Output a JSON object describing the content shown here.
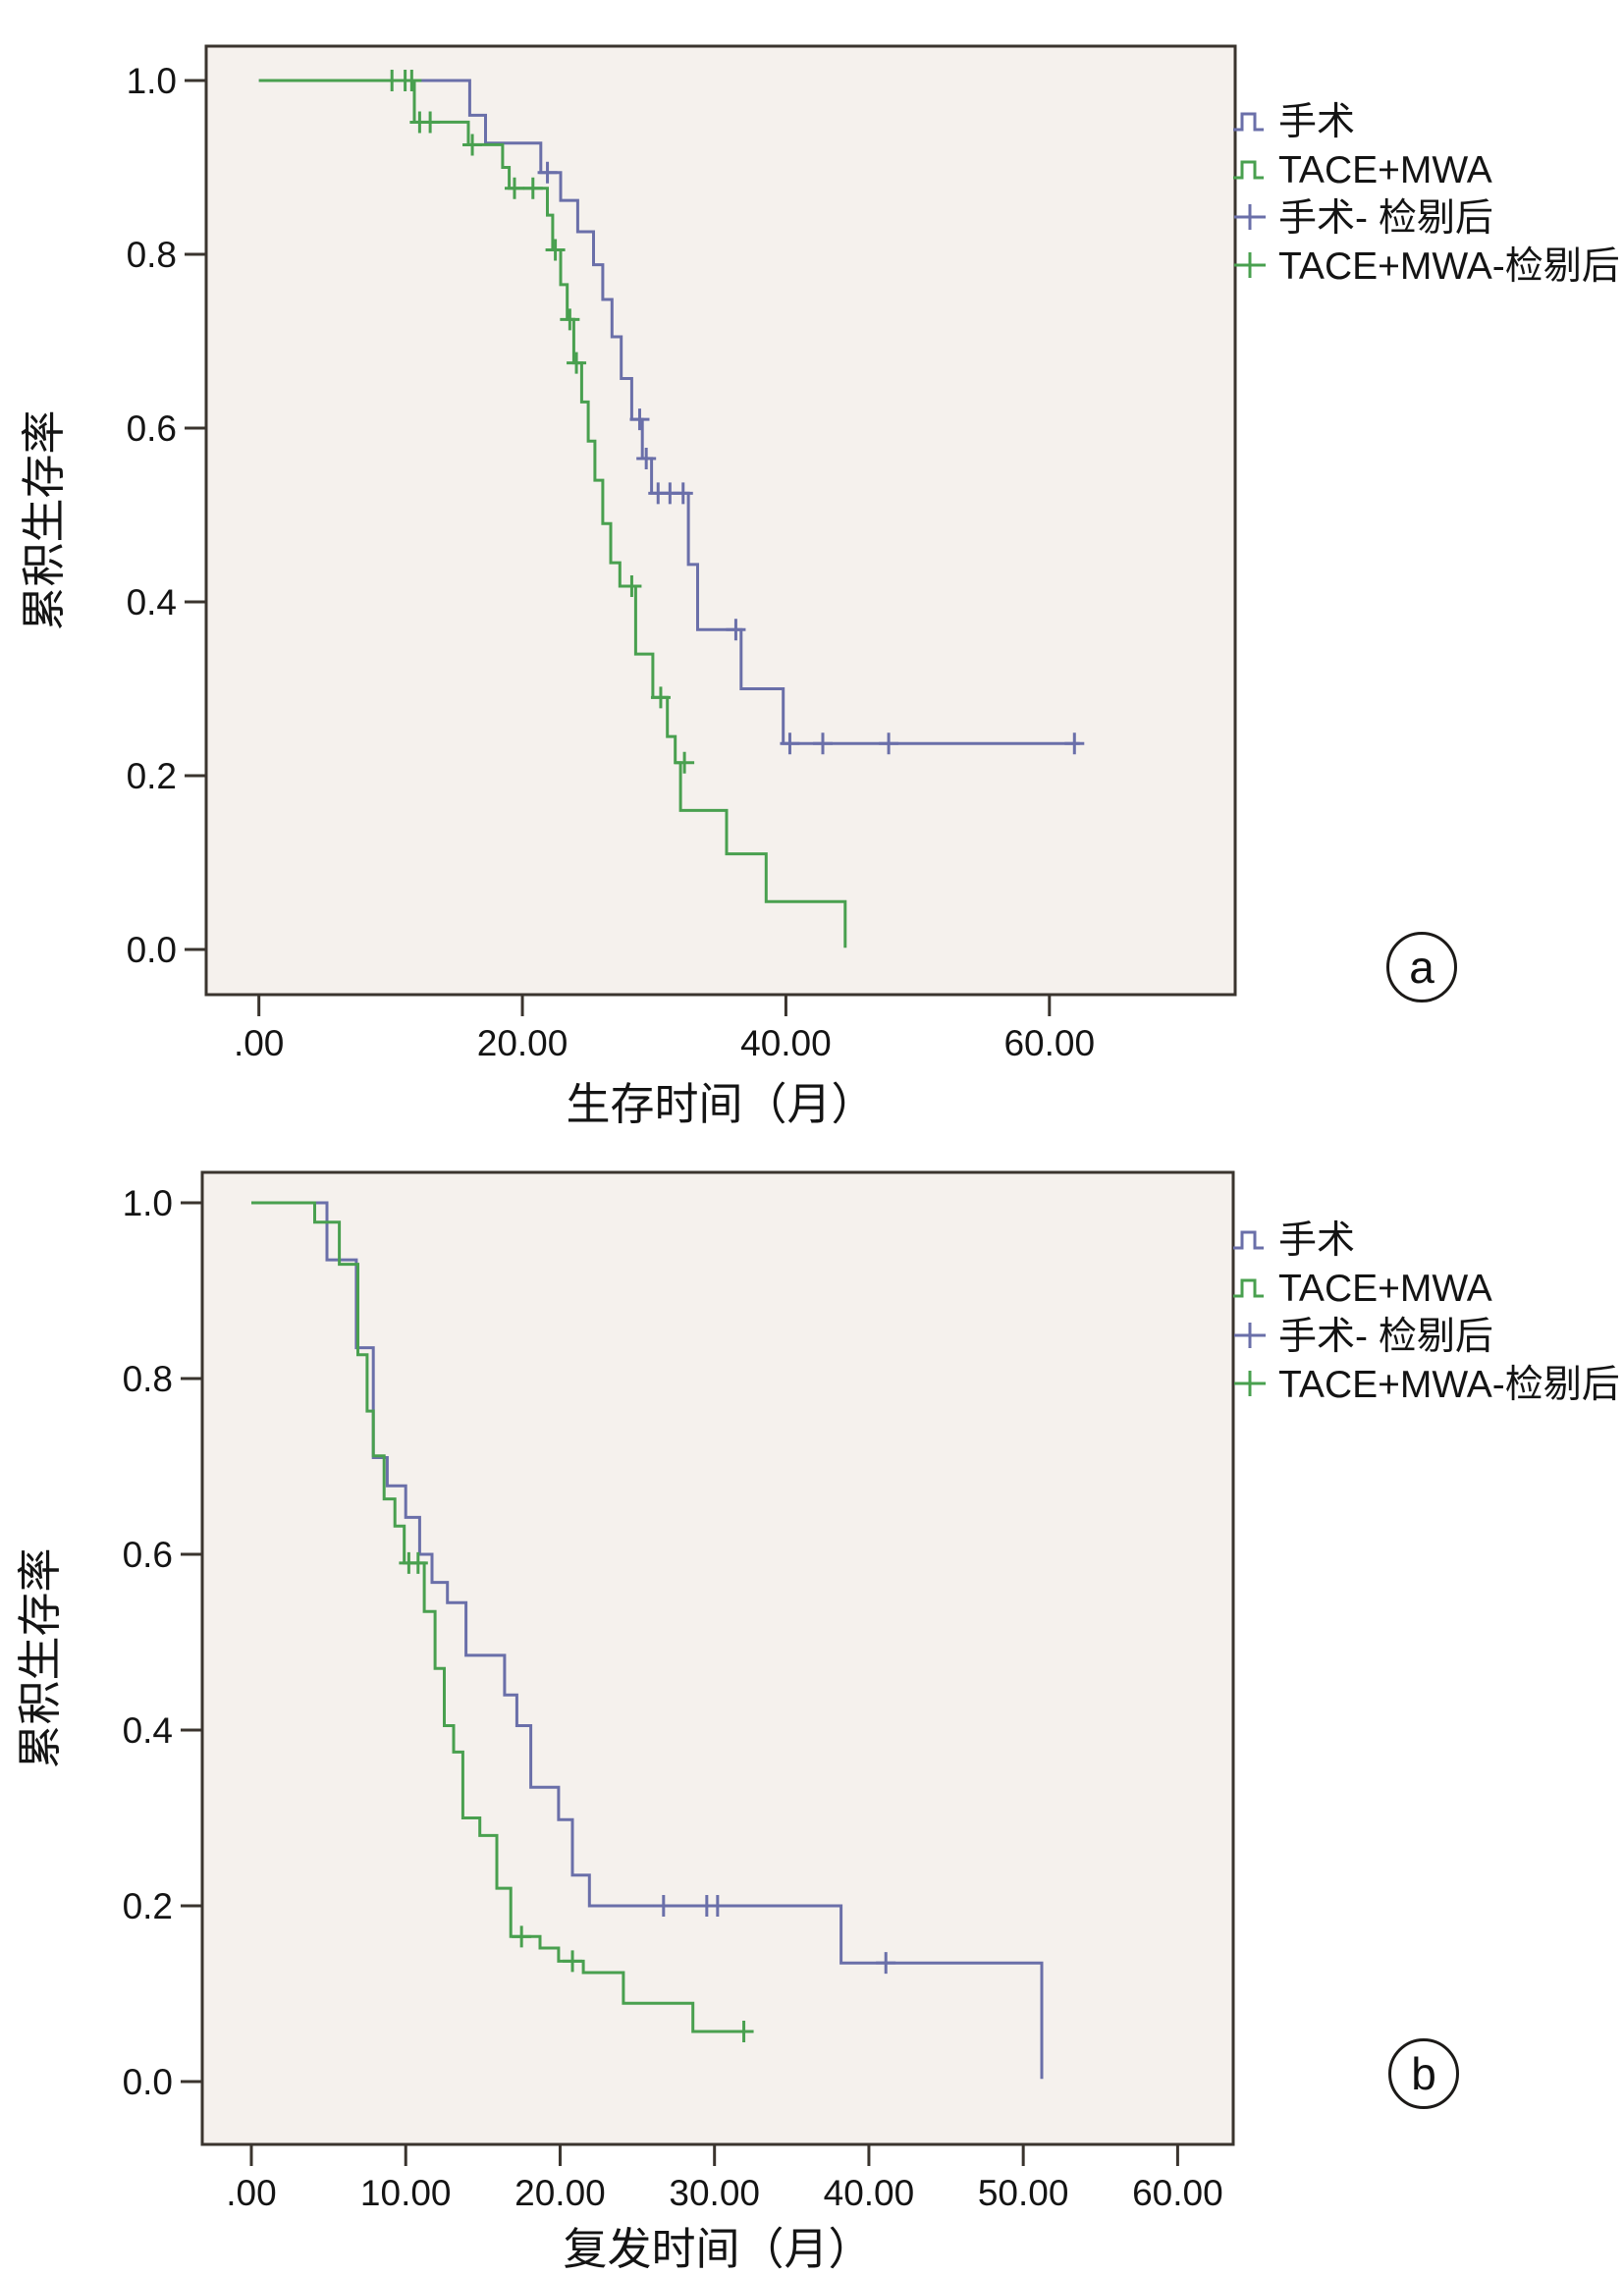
{
  "figure": {
    "background": "#ffffff",
    "panel_markers": [
      "a",
      "b"
    ]
  },
  "colors": {
    "surgery": "#6a6fa9",
    "tace_mwa": "#49a04f",
    "plot_bg": "#f5f1ed",
    "frame": "#3a342e",
    "text": "#141414"
  },
  "legend_items": [
    {
      "label": "手术",
      "series": "surgery",
      "glyph": "step"
    },
    {
      "label": "TACE+MWA",
      "series": "tace_mwa",
      "glyph": "step"
    },
    {
      "label": "手术- 检剔后",
      "series": "surgery",
      "glyph": "plus"
    },
    {
      "label": "TACE+MWA-检剔后",
      "series": "tace_mwa",
      "glyph": "plus"
    }
  ],
  "chart_data": [
    {
      "panel": "a",
      "type": "line",
      "subtype": "kaplan-meier-step",
      "title": "",
      "xlabel": "生存时间（月）",
      "ylabel": "累积生存率",
      "grid": false,
      "legend_position": "right-top",
      "xlim": [
        -4.0,
        74.1
      ],
      "ylim": [
        -0.052,
        1.0395
      ],
      "xticks": [
        {
          "t": 0,
          "label": ".00"
        },
        {
          "t": 20,
          "label": "20.00"
        },
        {
          "t": 40,
          "label": "40.00"
        },
        {
          "t": 60,
          "label": "60.00"
        }
      ],
      "yticks": [
        {
          "v": 0.0,
          "label": "0.0"
        },
        {
          "v": 0.2,
          "label": "0.2"
        },
        {
          "v": 0.4,
          "label": "0.4"
        },
        {
          "v": 0.6,
          "label": "0.6"
        },
        {
          "v": 0.8,
          "label": "0.8"
        },
        {
          "v": 1.0,
          "label": "1.0"
        }
      ],
      "series": [
        {
          "name": "手术",
          "color_key": "surgery",
          "points": [
            [
              0,
              1.0
            ],
            [
              16,
              1.0
            ],
            [
              16,
              0.96
            ],
            [
              17.2,
              0.96
            ],
            [
              17.2,
              0.928
            ],
            [
              21.4,
              0.928
            ],
            [
              21.4,
              0.894
            ],
            [
              22.9,
              0.894
            ],
            [
              22.9,
              0.862
            ],
            [
              24.2,
              0.862
            ],
            [
              24.2,
              0.826
            ],
            [
              25.4,
              0.826
            ],
            [
              25.4,
              0.788
            ],
            [
              26.1,
              0.788
            ],
            [
              26.1,
              0.748
            ],
            [
              26.8,
              0.748
            ],
            [
              26.8,
              0.705
            ],
            [
              27.5,
              0.705
            ],
            [
              27.5,
              0.657
            ],
            [
              28.3,
              0.657
            ],
            [
              28.3,
              0.61
            ],
            [
              29.1,
              0.61
            ],
            [
              29.1,
              0.565
            ],
            [
              29.8,
              0.565
            ],
            [
              29.8,
              0.525
            ],
            [
              32.6,
              0.525
            ],
            [
              32.6,
              0.443
            ],
            [
              33.3,
              0.443
            ],
            [
              33.3,
              0.368
            ],
            [
              36.6,
              0.368
            ],
            [
              36.6,
              0.3
            ],
            [
              39.8,
              0.3
            ],
            [
              39.8,
              0.237
            ],
            [
              62.3,
              0.237
            ]
          ],
          "censors": [
            [
              21.9,
              0.894
            ],
            [
              28.9,
              0.61
            ],
            [
              29.4,
              0.565
            ],
            [
              30.3,
              0.525
            ],
            [
              31.2,
              0.525
            ],
            [
              32.2,
              0.525
            ],
            [
              36.2,
              0.368
            ],
            [
              40.3,
              0.237
            ],
            [
              42.8,
              0.237
            ],
            [
              47.8,
              0.237
            ],
            [
              61.9,
              0.237
            ]
          ]
        },
        {
          "name": "TACE+MWA",
          "color_key": "tace_mwa",
          "points": [
            [
              0,
              1.0
            ],
            [
              11.8,
              1.0
            ],
            [
              11.8,
              0.952
            ],
            [
              15.9,
              0.952
            ],
            [
              15.9,
              0.926
            ],
            [
              18.5,
              0.926
            ],
            [
              18.5,
              0.9
            ],
            [
              19.0,
              0.9
            ],
            [
              19.0,
              0.876
            ],
            [
              21.9,
              0.876
            ],
            [
              21.9,
              0.845
            ],
            [
              22.3,
              0.845
            ],
            [
              22.3,
              0.805
            ],
            [
              22.9,
              0.805
            ],
            [
              22.9,
              0.765
            ],
            [
              23.4,
              0.765
            ],
            [
              23.4,
              0.725
            ],
            [
              23.9,
              0.725
            ],
            [
              23.9,
              0.675
            ],
            [
              24.5,
              0.675
            ],
            [
              24.5,
              0.63
            ],
            [
              25.0,
              0.63
            ],
            [
              25.0,
              0.585
            ],
            [
              25.5,
              0.585
            ],
            [
              25.5,
              0.54
            ],
            [
              26.1,
              0.54
            ],
            [
              26.1,
              0.49
            ],
            [
              26.7,
              0.49
            ],
            [
              26.7,
              0.445
            ],
            [
              27.4,
              0.445
            ],
            [
              27.4,
              0.418
            ],
            [
              28.6,
              0.418
            ],
            [
              28.6,
              0.34
            ],
            [
              29.9,
              0.34
            ],
            [
              29.9,
              0.29
            ],
            [
              31.0,
              0.29
            ],
            [
              31.0,
              0.245
            ],
            [
              31.6,
              0.245
            ],
            [
              31.6,
              0.215
            ],
            [
              32.0,
              0.215
            ],
            [
              32.0,
              0.16
            ],
            [
              35.5,
              0.16
            ],
            [
              35.5,
              0.11
            ],
            [
              38.5,
              0.11
            ],
            [
              38.5,
              0.055
            ],
            [
              44.5,
              0.055
            ],
            [
              44.5,
              0.002
            ]
          ],
          "censors": [
            [
              10.1,
              1.0
            ],
            [
              11.1,
              1.0
            ],
            [
              11.6,
              1.0
            ],
            [
              12.2,
              0.952
            ],
            [
              13.0,
              0.952
            ],
            [
              16.2,
              0.926
            ],
            [
              19.4,
              0.876
            ],
            [
              20.8,
              0.876
            ],
            [
              22.5,
              0.805
            ],
            [
              23.6,
              0.725
            ],
            [
              24.1,
              0.675
            ],
            [
              28.3,
              0.418
            ],
            [
              30.5,
              0.29
            ],
            [
              32.3,
              0.215
            ]
          ]
        }
      ]
    },
    {
      "panel": "b",
      "type": "line",
      "subtype": "kaplan-meier-step",
      "title": "",
      "xlabel": "复发时间（月）",
      "ylabel": "累积生存率",
      "grid": false,
      "legend_position": "right-top",
      "xlim": [
        -3.18,
        63.6
      ],
      "ylim": [
        -0.0715,
        1.0346
      ],
      "xticks": [
        {
          "t": 0,
          "label": ".00"
        },
        {
          "t": 10,
          "label": "10.00"
        },
        {
          "t": 20,
          "label": "20.00"
        },
        {
          "t": 30,
          "label": "30.00"
        },
        {
          "t": 40,
          "label": "40.00"
        },
        {
          "t": 50,
          "label": "50.00"
        },
        {
          "t": 60,
          "label": "60.00"
        }
      ],
      "yticks": [
        {
          "v": 0.0,
          "label": "0.0"
        },
        {
          "v": 0.2,
          "label": "0.2"
        },
        {
          "v": 0.4,
          "label": "0.4"
        },
        {
          "v": 0.6,
          "label": "0.6"
        },
        {
          "v": 0.8,
          "label": "0.8"
        },
        {
          "v": 1.0,
          "label": "1.0"
        }
      ],
      "series": [
        {
          "name": "手术",
          "color_key": "surgery",
          "points": [
            [
              0,
              1.0
            ],
            [
              4.9,
              1.0
            ],
            [
              4.9,
              0.935
            ],
            [
              6.8,
              0.935
            ],
            [
              6.8,
              0.835
            ],
            [
              7.9,
              0.835
            ],
            [
              7.9,
              0.71
            ],
            [
              8.8,
              0.71
            ],
            [
              8.8,
              0.678
            ],
            [
              10.0,
              0.678
            ],
            [
              10.0,
              0.642
            ],
            [
              10.9,
              0.642
            ],
            [
              10.9,
              0.6
            ],
            [
              11.7,
              0.6
            ],
            [
              11.7,
              0.568
            ],
            [
              12.7,
              0.568
            ],
            [
              12.7,
              0.545
            ],
            [
              13.9,
              0.545
            ],
            [
              13.9,
              0.485
            ],
            [
              16.4,
              0.485
            ],
            [
              16.4,
              0.44
            ],
            [
              17.2,
              0.44
            ],
            [
              17.2,
              0.405
            ],
            [
              18.1,
              0.405
            ],
            [
              18.1,
              0.335
            ],
            [
              19.9,
              0.335
            ],
            [
              19.9,
              0.298
            ],
            [
              20.8,
              0.298
            ],
            [
              20.8,
              0.235
            ],
            [
              21.9,
              0.235
            ],
            [
              21.9,
              0.2
            ],
            [
              38.2,
              0.2
            ],
            [
              38.2,
              0.135
            ],
            [
              51.2,
              0.135
            ],
            [
              51.2,
              0.003
            ]
          ],
          "censors": [
            [
              26.7,
              0.2
            ],
            [
              29.5,
              0.2
            ],
            [
              30.2,
              0.2
            ],
            [
              41.1,
              0.135
            ]
          ]
        },
        {
          "name": "TACE+MWA",
          "color_key": "tace_mwa",
          "points": [
            [
              0,
              1.0
            ],
            [
              4.1,
              1.0
            ],
            [
              4.1,
              0.978
            ],
            [
              5.7,
              0.978
            ],
            [
              5.7,
              0.93
            ],
            [
              6.9,
              0.93
            ],
            [
              6.9,
              0.827
            ],
            [
              7.5,
              0.827
            ],
            [
              7.5,
              0.763
            ],
            [
              7.9,
              0.763
            ],
            [
              7.9,
              0.712
            ],
            [
              8.6,
              0.712
            ],
            [
              8.6,
              0.663
            ],
            [
              9.3,
              0.663
            ],
            [
              9.3,
              0.632
            ],
            [
              9.9,
              0.632
            ],
            [
              9.9,
              0.59
            ],
            [
              11.2,
              0.59
            ],
            [
              11.2,
              0.535
            ],
            [
              11.9,
              0.535
            ],
            [
              11.9,
              0.47
            ],
            [
              12.5,
              0.47
            ],
            [
              12.5,
              0.405
            ],
            [
              13.1,
              0.405
            ],
            [
              13.1,
              0.375
            ],
            [
              13.7,
              0.375
            ],
            [
              13.7,
              0.3
            ],
            [
              14.8,
              0.3
            ],
            [
              14.8,
              0.28
            ],
            [
              15.9,
              0.28
            ],
            [
              15.9,
              0.22
            ],
            [
              16.8,
              0.22
            ],
            [
              16.8,
              0.165
            ],
            [
              18.7,
              0.165
            ],
            [
              18.7,
              0.152
            ],
            [
              19.9,
              0.152
            ],
            [
              19.9,
              0.137
            ],
            [
              21.5,
              0.137
            ],
            [
              21.5,
              0.124
            ],
            [
              24.1,
              0.124
            ],
            [
              24.1,
              0.089
            ],
            [
              28.6,
              0.089
            ],
            [
              28.6,
              0.057
            ],
            [
              32.0,
              0.057
            ]
          ],
          "censors": [
            [
              10.2,
              0.59
            ],
            [
              10.8,
              0.59
            ],
            [
              17.5,
              0.165
            ],
            [
              20.8,
              0.137
            ],
            [
              31.9,
              0.057
            ]
          ]
        }
      ]
    }
  ]
}
